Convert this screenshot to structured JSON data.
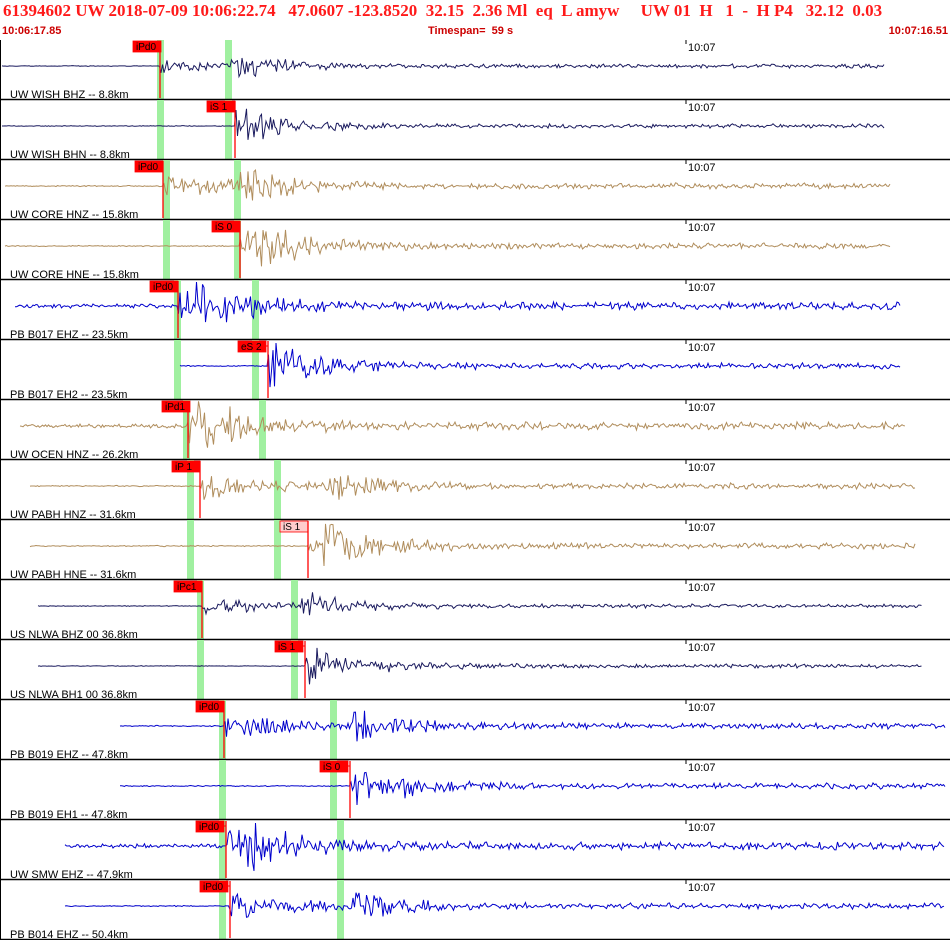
{
  "header": {
    "title": "61394602 UW 2018-07-09 10:06:22.74   47.0607 -123.8520  32.15  2.36 Ml  eq  L amyw     UW 01  H   1  -  H P4   32.12  0.03",
    "start_time": "10:06:17.85",
    "timespan": "Timespan=  59 s",
    "end_time": "10:07:16.51"
  },
  "colors": {
    "title": "#ff1a1a",
    "pick": "#ff0000",
    "pick_light": "#ffcccc",
    "green_bar": "#a0f0a0"
  },
  "traces": [
    {
      "label": "UW WISH BHZ -- 8.8km",
      "time_tick": "10:07",
      "color": "#1a1a5e",
      "pick": "iPd0",
      "pick_filled": true,
      "amp": "lo"
    },
    {
      "label": "UW WISH BHN -- 8.8km",
      "time_tick": "10:07",
      "color": "#1a1a5e",
      "pick": "iS 1",
      "pick_filled": true,
      "amp": "lo"
    },
    {
      "label": "UW CORE HNZ -- 15.8km",
      "time_tick": "10:07",
      "color": "#b08d5c",
      "pick": "iPd0",
      "pick_filled": true,
      "amp": "mid"
    },
    {
      "label": "UW CORE HNE -- 15.8km",
      "time_tick": "10:07",
      "color": "#b08d5c",
      "pick": "iS 0",
      "pick_filled": true,
      "amp": "mid"
    },
    {
      "label": "PB B017 EHZ -- 23.5km",
      "time_tick": "10:07",
      "color": "#0000cc",
      "pick": "iPd0",
      "pick_filled": true,
      "amp": "hi"
    },
    {
      "label": "PB B017 EH2 -- 23.5km",
      "time_tick": "10:07",
      "color": "#0000cc",
      "pick": "eS 2",
      "pick_filled": true,
      "amp": "mid"
    },
    {
      "label": "UW OCEN HNZ -- 26.2km",
      "time_tick": "10:07",
      "color": "#b08d5c",
      "pick": "iPd1",
      "pick_filled": true,
      "amp": "hi"
    },
    {
      "label": "UW PABH HNZ -- 31.6km",
      "time_tick": "10:07",
      "color": "#b08d5c",
      "pick": "iP 1",
      "pick_filled": true,
      "amp": "mid"
    },
    {
      "label": "UW PABH HNE -- 31.6km",
      "time_tick": "10:07",
      "color": "#b08d5c",
      "pick": "iS 1",
      "pick_filled": false,
      "amp": "mid"
    },
    {
      "label": "US NLWA BHZ 00 36.8km",
      "time_tick": "10:07",
      "color": "#1a1a5e",
      "pick": "iPc1",
      "pick_filled": true,
      "amp": "lo"
    },
    {
      "label": "US NLWA BH1 00 36.8km",
      "time_tick": "10:07",
      "color": "#1a1a5e",
      "pick": "iS 1",
      "pick_filled": true,
      "amp": "lo"
    },
    {
      "label": "PB B019 EHZ -- 47.8km",
      "time_tick": "10:07",
      "color": "#0000cc",
      "pick": "iPd0",
      "pick_filled": true,
      "amp": "mid"
    },
    {
      "label": "PB B019 EH1 -- 47.8km",
      "time_tick": "10:07",
      "color": "#0000cc",
      "pick": "iS 0",
      "pick_filled": true,
      "amp": "mid"
    },
    {
      "label": "UW SMW EHZ -- 47.9km",
      "time_tick": "10:07",
      "color": "#0000cc",
      "pick": "iPd0",
      "pick_filled": true,
      "amp": "hi"
    },
    {
      "label": "PB B014 EHZ -- 50.4km",
      "time_tick": "10:07",
      "color": "#0000cc",
      "pick": "iPd0",
      "pick_filled": true,
      "amp": "mid"
    }
  ]
}
